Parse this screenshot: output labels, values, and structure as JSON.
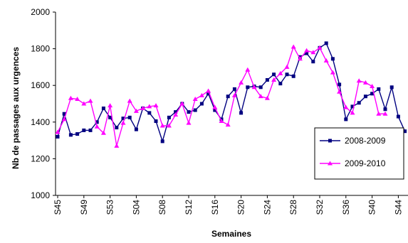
{
  "chart_data": {
    "type": "line",
    "title": "",
    "xlabel": "Semaines",
    "ylabel": "Nb de passages aux urgences",
    "ylim": [
      1000,
      2000
    ],
    "yticks": [
      "1000",
      "1200",
      "1400",
      "1600",
      "1800",
      "2000"
    ],
    "grid": false,
    "legend_position": "bottom-right",
    "categories": [
      "S45",
      "S46",
      "S47",
      "S48",
      "S49",
      "S50",
      "S51",
      "S52",
      "S53",
      "S01",
      "S02",
      "S03",
      "S04",
      "S05",
      "S06",
      "S07",
      "S08",
      "S09",
      "S10",
      "S11",
      "S12",
      "S13",
      "S14",
      "S15",
      "S16",
      "S17",
      "S18",
      "S19",
      "S20",
      "S21",
      "S22",
      "S23",
      "S24",
      "S25",
      "S26",
      "S27",
      "S28",
      "S29",
      "S30",
      "S31",
      "S32",
      "S33",
      "S34",
      "S35",
      "S36",
      "S37",
      "S38",
      "S39",
      "S40",
      "S41",
      "S42",
      "S43",
      "S44",
      "S45"
    ],
    "x_tick_labels": [
      "S45",
      "S49",
      "S53",
      "S04",
      "S08",
      "S12",
      "S16",
      "S20",
      "S24",
      "S28",
      "S32",
      "S36",
      "S40",
      "S44"
    ],
    "series": [
      {
        "name": "2008-2009",
        "color": "#000080",
        "marker": "square",
        "values": [
          1320,
          1445,
          1330,
          1335,
          1355,
          1355,
          1400,
          1475,
          1425,
          1370,
          1420,
          1425,
          1360,
          1475,
          1450,
          1405,
          1295,
          1425,
          1455,
          1500,
          1455,
          1465,
          1500,
          1555,
          1465,
          1415,
          1540,
          1580,
          1450,
          1590,
          1595,
          1590,
          1630,
          1660,
          1610,
          1660,
          1650,
          1755,
          1775,
          1730,
          1805,
          1830,
          1745,
          1605,
          1415,
          1485,
          1505,
          1540,
          1555,
          1580,
          1470,
          1590,
          1430,
          1350
        ]
      },
      {
        "name": "2009-2010",
        "color": "#ff00ff",
        "marker": "triangle",
        "values": [
          1345,
          1415,
          1530,
          1525,
          1500,
          1515,
          1375,
          1340,
          1490,
          1270,
          1395,
          1515,
          1460,
          1475,
          1485,
          1490,
          1380,
          1380,
          1440,
          1500,
          1395,
          1525,
          1545,
          1570,
          1480,
          1405,
          1385,
          1545,
          1615,
          1685,
          1590,
          1540,
          1530,
          1630,
          1665,
          1700,
          1810,
          1745,
          1790,
          1780,
          1805,
          1735,
          1670,
          1565,
          1480,
          1450,
          1625,
          1615,
          1595,
          1445,
          1445,
          null,
          null,
          null
        ]
      }
    ]
  }
}
